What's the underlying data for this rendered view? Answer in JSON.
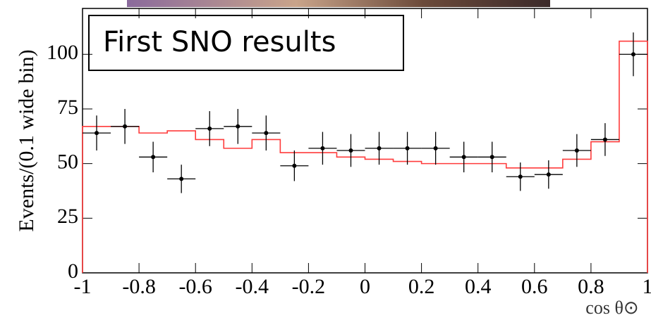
{
  "chart_data": {
    "type": "errorbar_histogram",
    "annotation": "First SNO results",
    "y_label": "Events/(0.1 wide bin)",
    "x_label": "cos θ⊙",
    "x": [
      -0.95,
      -0.85,
      -0.75,
      -0.65,
      -0.55,
      -0.45,
      -0.35,
      -0.25,
      -0.15,
      -0.05,
      0.05,
      0.15,
      0.25,
      0.35,
      0.45,
      0.55,
      0.65,
      0.75,
      0.85,
      0.95
    ],
    "values": [
      64,
      67,
      53,
      43,
      66,
      67,
      64,
      49,
      57,
      56,
      57,
      57,
      57,
      53,
      53,
      44,
      45,
      56,
      61,
      100
    ],
    "errors": [
      8,
      8,
      7,
      6.5,
      8,
      8,
      8,
      7,
      7.5,
      7.5,
      7.5,
      7.5,
      7.5,
      7,
      7,
      6.5,
      6.5,
      7.5,
      7.5,
      10
    ],
    "x_error": 0.05,
    "marker_color": "#000000",
    "bins": [
      -1,
      -0.9,
      -0.8,
      -0.7,
      -0.6,
      -0.5,
      -0.4,
      -0.3,
      -0.2,
      -0.1,
      0,
      0.1,
      0.2,
      0.3,
      0.4,
      0.5,
      0.6,
      0.7,
      0.8,
      0.9,
      1
    ],
    "step_counts": [
      67,
      67,
      64,
      65,
      61,
      57,
      61,
      55,
      55,
      53,
      52,
      51,
      50,
      50,
      50,
      48,
      48,
      52,
      60,
      106
    ],
    "step_color": "#ff3b3b",
    "xlim": [
      -1,
      1
    ],
    "ylim": [
      0,
      121
    ],
    "xticks": [
      -1,
      -0.8,
      -0.6,
      -0.4,
      -0.2,
      0,
      0.2,
      0.4,
      0.6,
      0.8,
      1
    ],
    "yticks": [
      0,
      25,
      50,
      75,
      100
    ]
  }
}
